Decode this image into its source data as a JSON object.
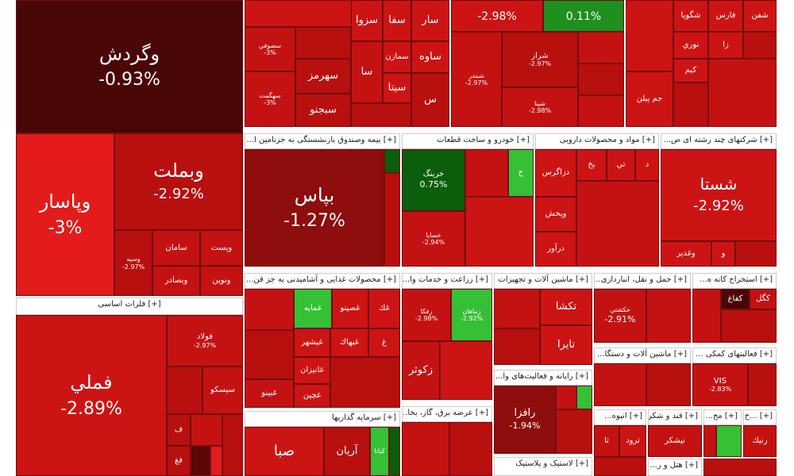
{
  "colors": {
    "dark": "#4a0707",
    "red": "#cc1414",
    "mid": "#b80f0f",
    "bright": "#e31b1b",
    "maroon": "#8e0d0d",
    "green": "#1f8f1f",
    "darkgreen": "#0b5e0b",
    "lightgreen": "#35c035"
  },
  "groups": {
    "basic_metals": "[+] فلزات اساسی",
    "insurance": "[+] بیمه وصندوق بازنشستگی به جزتامین ا...",
    "auto": "[+] خودرو و ساخت قطعات",
    "pharma": "[+] مواد و محصولات دارویی",
    "multi": "[+] شرکتهای چند رشته ای ص...",
    "food": "[+] محصولات غذایی و آشامیدنی به جز قن...",
    "agri": "[+] زراعت و خدمات وا...",
    "machinery": "[+] ماشین آلات و تجهیزات",
    "transport": "[+] حمل و نقل، انبارداری...",
    "mining": "[+] استخراج کانه ه...",
    "computer": "[+] رایانه و فعالیت‌های وا...",
    "machinery2": "[+] ماشین آلات و دستگا...",
    "aux": "[+] فعالیتهای کمکی ...",
    "investment": "[+] سرمایه گذاریها",
    "utility": "[+] عرضه برق، گاز، بخا...",
    "plastic": "[+] لاستیک و پلاستیک",
    "sugar": "[+] قند و شکر",
    "mass": "[+] انبوه...",
    "hotel": "[+] هتل و ر...",
    "pharma2": "[+] مح...",
    "misc": "[+] ...خ"
  },
  "tiles": {
    "vgardesh": {
      "name": "وگردش",
      "pct": "-0.93%"
    },
    "vpasar": {
      "name": "وپاسار",
      "pct": "-3%"
    },
    "vbmelt": {
      "name": "وبملت",
      "pct": "-2.92%"
    },
    "vsapa": {
      "name": "وسپه",
      "pct": "-2.97%"
    },
    "saman": {
      "name": "سامان"
    },
    "vbsadr": {
      "name": "وبصادر"
    },
    "vpost": {
      "name": "وپست"
    },
    "vnovin": {
      "name": "ونوین"
    },
    "femli": {
      "name": "فملي",
      "pct": "-2.89%"
    },
    "fulad": {
      "name": "فولاد",
      "pct": "-2.97%"
    },
    "sisko": {
      "name": "سیسکو"
    },
    "f": {
      "name": "ف"
    },
    "fgh": {
      "name": "فغ"
    },
    "bpas": {
      "name": "بپاس",
      "pct": "-1.27%"
    },
    "khrink": {
      "name": "خرینگ",
      "pct": "0.75%"
    },
    "khsapa": {
      "name": "خساپا",
      "pct": "-2.94%"
    },
    "kh": {
      "name": "خ"
    },
    "dzagros": {
      "name": "دزاگرس"
    },
    "vpakhsh": {
      "name": "وپخش"
    },
    "daravar": {
      "name": "درآور"
    },
    "bkh": {
      "name": "بخ"
    },
    "ti": {
      "name": "تي"
    },
    "d": {
      "name": "د"
    },
    "shasta": {
      "name": "شستا",
      "pct": "-2.92%"
    },
    "vghadir": {
      "name": "وغدير"
    },
    "v": {
      "name": "و"
    },
    "ghamayeh": {
      "name": "غمايه"
    },
    "ghasino": {
      "name": "غصينو"
    },
    "ghak": {
      "name": "غك"
    },
    "ghshahr": {
      "name": "غيشهر"
    },
    "ghbahak": {
      "name": "غبهاك"
    },
    "gh": {
      "name": "غ"
    },
    "ghanizan": {
      "name": "غانيزان"
    },
    "ghjin": {
      "name": "غچين"
    },
    "ghbino": {
      "name": "غبينو"
    },
    "zakoter": {
      "name": "زكوثر"
    },
    "zfka": {
      "name": "زفكا",
      "pct": "-2.98%"
    },
    "zmahan": {
      "name": "زماهان",
      "pct": "-2.92%"
    },
    "takhsha": {
      "name": "تكشا"
    },
    "tayera": {
      "name": "تايرا"
    },
    "hkashti": {
      "name": "حكشتي",
      "pct": "-2.91%"
    },
    "kgol": {
      "name": "كگل"
    },
    "kafagh": {
      "name": "كفاغ"
    },
    "rafaza": {
      "name": "رافزا",
      "pct": "-1.94%"
    },
    "vis": {
      "name": "VIS",
      "pct": "-2.83%"
    },
    "nishkar": {
      "name": "نيشكر"
    },
    "trood": {
      "name": "ترود"
    },
    "ta": {
      "name": "ثا"
    },
    "rnik": {
      "name": "رنيك"
    },
    "ariyan": {
      "name": "آريان"
    },
    "kiana": {
      "name": "كيانا"
    },
    "seba": {
      "name": "صبا"
    },
    "shpna": {
      "name": "شپنا",
      "pct": "-2.98%"
    },
    "top_pct": {
      "pct": "-2.98%"
    },
    "top_green_pct": {
      "pct": "0.11%"
    },
    "shiraz": {
      "name": "شراز",
      "pct": "-2.97%"
    },
    "shbandar": {
      "name": "شبندر",
      "pct": "-2.97%"
    },
    "sezva": {
      "name": "سزوا"
    },
    "safa": {
      "name": "سفا"
    },
    "sar": {
      "name": "سار"
    },
    "savah": {
      "name": "ساوه"
    },
    "semazan": {
      "name": "سمازن"
    },
    "saharmaz": {
      "name": "سهرمز"
    },
    "sita": {
      "name": "سيتا"
    },
    "sebjno": {
      "name": "سبجنو"
    },
    "sa": {
      "name": "سا"
    },
    "s": {
      "name": "س"
    },
    "shgooya": {
      "name": "شگويا"
    },
    "fars": {
      "name": "فارس"
    },
    "shafen": {
      "name": "شفن"
    },
    "noori": {
      "name": "نوري"
    },
    "za": {
      "name": "زا"
    },
    "kim": {
      "name": "كيم"
    },
    "jampilan": {
      "name": "جم پيلن"
    },
    "sasofi": {
      "name": "سصوفي",
      "pct": "-3%"
    },
    "sahkat": {
      "name": "سهگمت",
      "pct": "-3%"
    }
  }
}
